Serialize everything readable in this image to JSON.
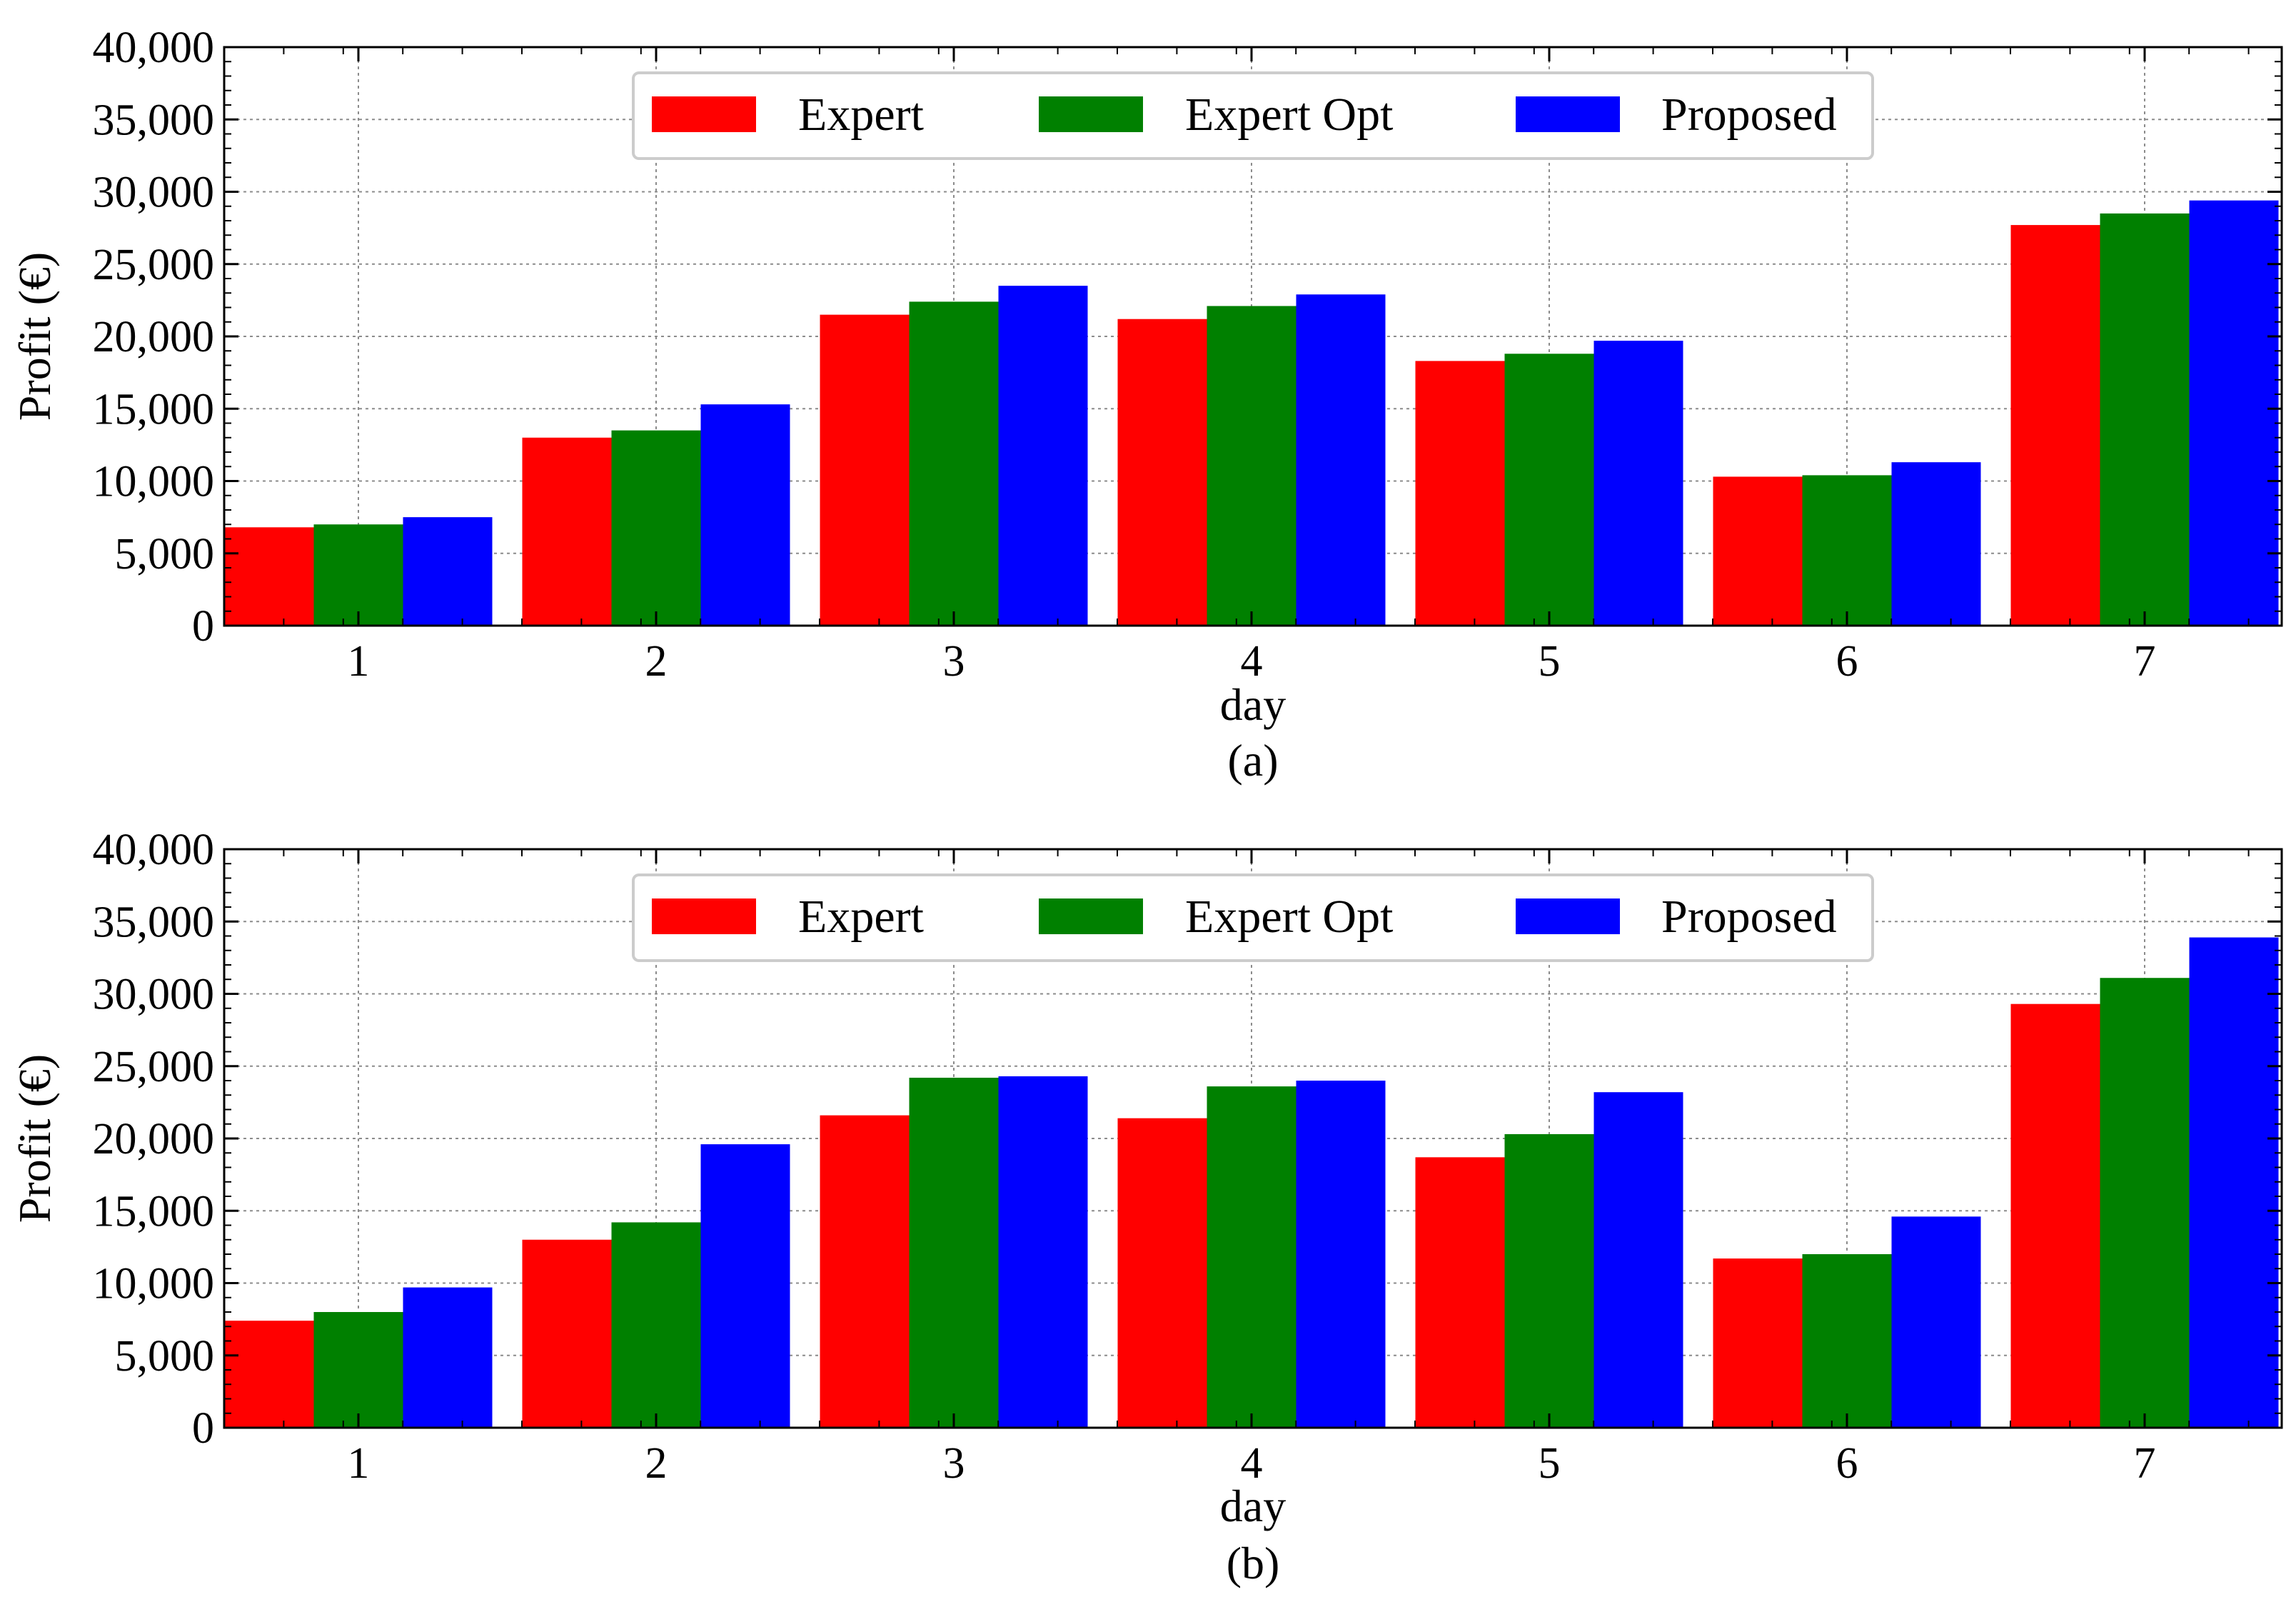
{
  "figure": {
    "panels": 2
  },
  "colors": {
    "Expert": "#ff0000",
    "Expert Opt": "#008000",
    "Proposed": "#0000ff",
    "grid": "#8c8c8c",
    "legend_border": "#cccccc"
  },
  "chart_data": [
    {
      "type": "bar",
      "caption": "(a)",
      "xlabel": "day",
      "ylabel": "Profit (€)",
      "categories": [
        "1",
        "2",
        "3",
        "4",
        "5",
        "6",
        "7"
      ],
      "ylim": [
        0,
        40000
      ],
      "yticks": [
        0,
        5000,
        10000,
        15000,
        20000,
        25000,
        30000,
        35000,
        40000
      ],
      "ytick_labels": [
        "0",
        "5,000",
        "10,000",
        "15,000",
        "20,000",
        "25,000",
        "30,000",
        "35,000",
        "40,000"
      ],
      "grid": true,
      "legend_position": "top-center",
      "series": [
        {
          "name": "Expert",
          "values": [
            6800,
            13000,
            21500,
            21200,
            18300,
            10300,
            27700
          ]
        },
        {
          "name": "Expert Opt",
          "values": [
            7000,
            13500,
            22400,
            22100,
            18800,
            10400,
            28500
          ]
        },
        {
          "name": "Proposed",
          "values": [
            7500,
            15300,
            23500,
            22900,
            19700,
            11300,
            29400
          ]
        }
      ]
    },
    {
      "type": "bar",
      "caption": "(b)",
      "xlabel": "day",
      "ylabel": "Profit (€)",
      "categories": [
        "1",
        "2",
        "3",
        "4",
        "5",
        "6",
        "7"
      ],
      "ylim": [
        0,
        40000
      ],
      "yticks": [
        0,
        5000,
        10000,
        15000,
        20000,
        25000,
        30000,
        35000,
        40000
      ],
      "ytick_labels": [
        "0",
        "5,000",
        "10,000",
        "15,000",
        "20,000",
        "25,000",
        "30,000",
        "35,000",
        "40,000"
      ],
      "grid": true,
      "legend_position": "top-center",
      "series": [
        {
          "name": "Expert",
          "values": [
            7400,
            13000,
            21600,
            21400,
            18700,
            11700,
            29300
          ]
        },
        {
          "name": "Expert Opt",
          "values": [
            8000,
            14200,
            24200,
            23600,
            20300,
            12000,
            31100
          ]
        },
        {
          "name": "Proposed",
          "values": [
            9700,
            19600,
            24300,
            24000,
            23200,
            14600,
            33900
          ]
        }
      ]
    }
  ]
}
